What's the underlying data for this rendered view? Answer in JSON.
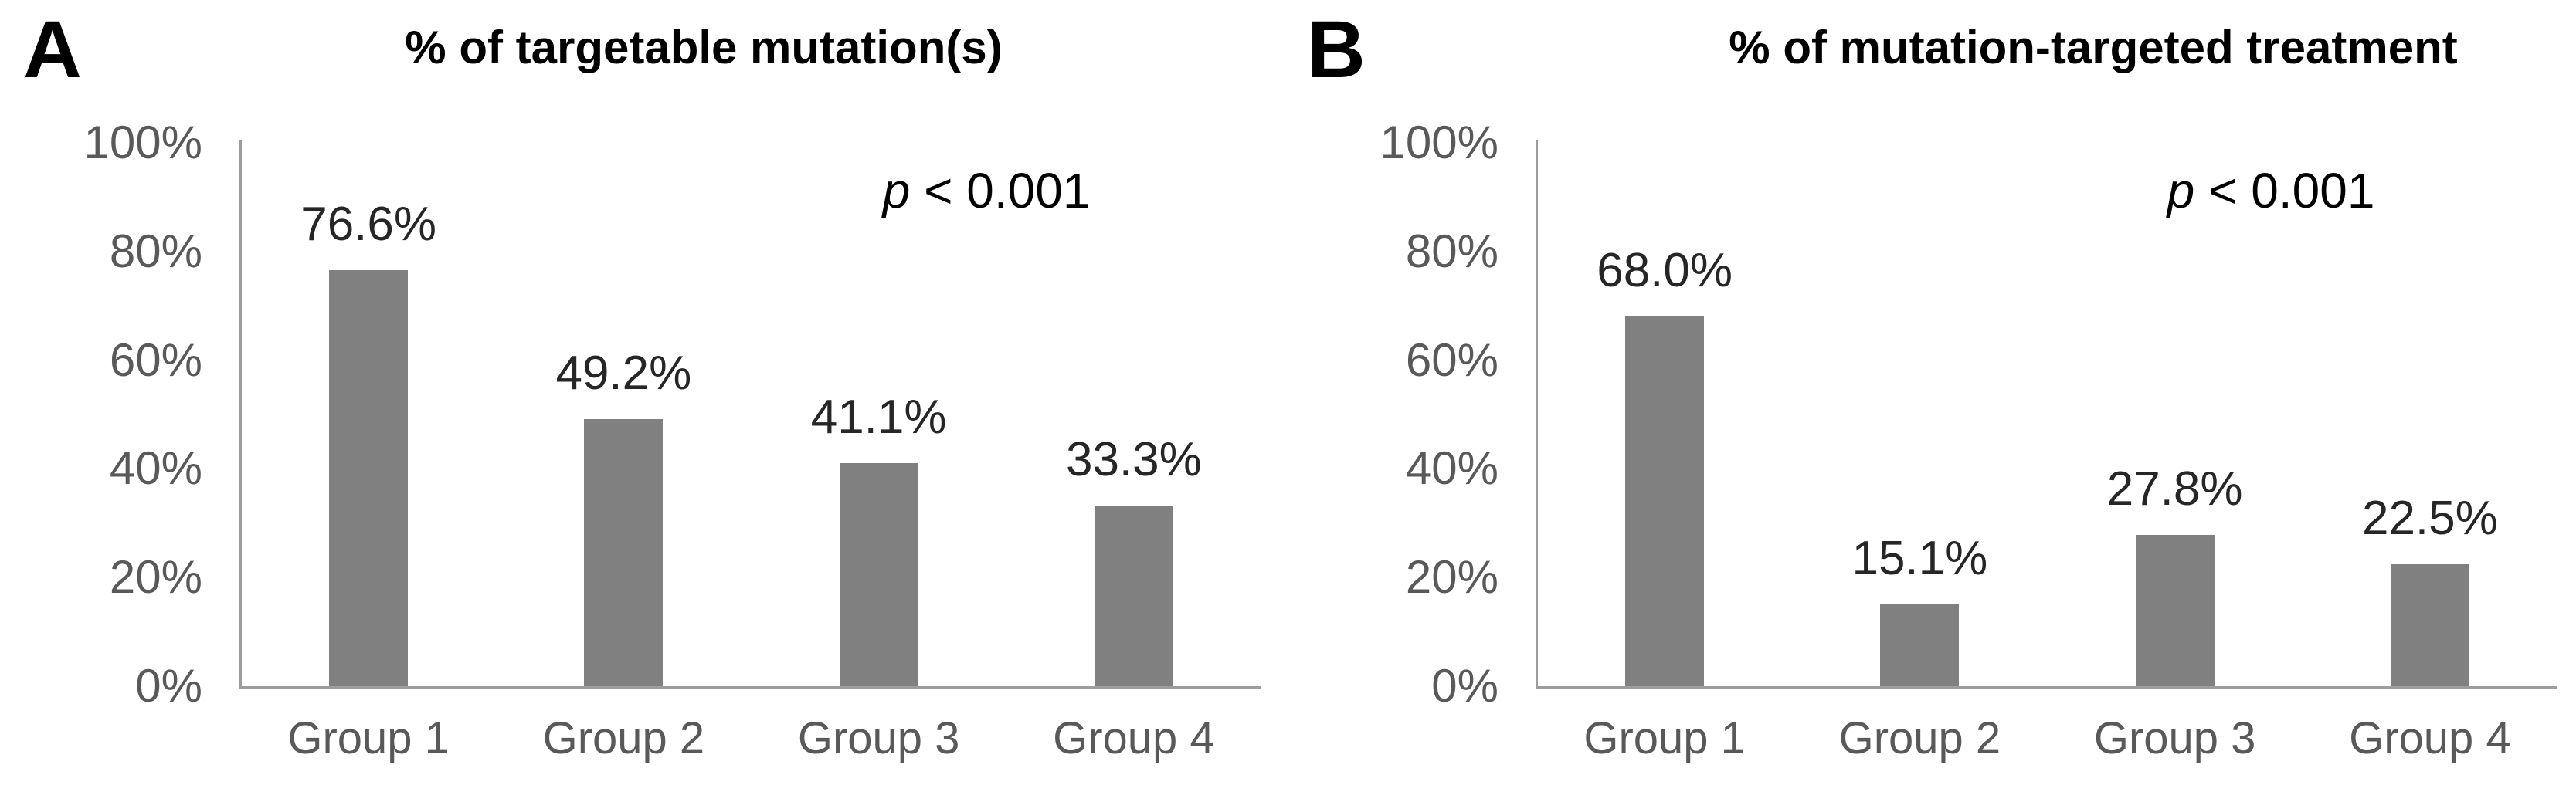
{
  "figure": {
    "background": "#ffffff",
    "bar_color": "#808080",
    "axis_color": "#9d9d9d",
    "tick_label_color": "#595959",
    "data_label_color": "#262626",
    "title_color": "#000000"
  },
  "panels": [
    {
      "letter": "A",
      "title": "% of targetable mutation(s)",
      "p_symbol": "p",
      "p_rest": "< 0.001"
    },
    {
      "letter": "B",
      "title": "% of mutation-targeted treatment",
      "p_symbol": "p",
      "p_rest": "< 0.001"
    }
  ],
  "chart_data": [
    {
      "type": "bar",
      "title": "% of targetable mutation(s)",
      "annotation": "p < 0.001",
      "categories": [
        "Group 1",
        "Group 2",
        "Group 3",
        "Group 4"
      ],
      "values": [
        76.6,
        49.2,
        41.1,
        33.3
      ],
      "value_labels": [
        "76.6%",
        "49.2%",
        "41.1%",
        "33.3%"
      ],
      "xlabel": "",
      "ylabel": "",
      "ylim": [
        0,
        100
      ],
      "yticks": [
        0,
        20,
        40,
        60,
        80,
        100
      ],
      "ytick_labels": [
        "0%",
        "20%",
        "40%",
        "60%",
        "80%",
        "100%"
      ],
      "grid": false,
      "legend": null
    },
    {
      "type": "bar",
      "title": "% of mutation-targeted treatment",
      "annotation": "p < 0.001",
      "categories": [
        "Group 1",
        "Group 2",
        "Group 3",
        "Group 4"
      ],
      "values": [
        68.0,
        15.1,
        27.8,
        22.5
      ],
      "value_labels": [
        "68.0%",
        "15.1%",
        "27.8%",
        "22.5%"
      ],
      "xlabel": "",
      "ylabel": "",
      "ylim": [
        0,
        100
      ],
      "yticks": [
        0,
        20,
        40,
        60,
        80,
        100
      ],
      "ytick_labels": [
        "0%",
        "20%",
        "40%",
        "60%",
        "80%",
        "100%"
      ],
      "grid": false,
      "legend": null
    }
  ]
}
